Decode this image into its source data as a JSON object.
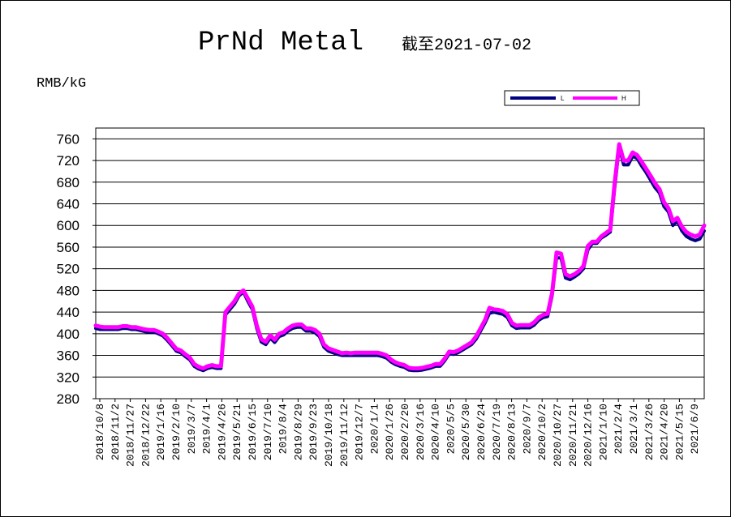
{
  "chart_data": {
    "type": "line",
    "title": "PrNd Metal",
    "subtitle": "截至2021-07-02",
    "ylabel": "RMB/kG",
    "ylim": [
      280,
      780
    ],
    "yticks": [
      280,
      320,
      360,
      400,
      440,
      480,
      520,
      560,
      600,
      640,
      680,
      720,
      760
    ],
    "grid": "horizontal",
    "legend_position": "top-right",
    "colors": {
      "L": "#000080",
      "H": "#ff00ff"
    },
    "x_labels": [
      "2018/10/8",
      "2018/11/2",
      "2018/11/27",
      "2018/12/22",
      "2019/1/16",
      "2019/2/10",
      "2019/3/7",
      "2019/4/1",
      "2019/4/26",
      "2019/5/21",
      "2019/6/15",
      "2019/7/10",
      "2019/8/4",
      "2019/8/29",
      "2019/9/23",
      "2019/10/18",
      "2019/11/12",
      "2019/12/7",
      "2020/1/1",
      "2020/1/26",
      "2020/2/20",
      "2020/3/16",
      "2020/4/10",
      "2020/5/5",
      "2020/5/30",
      "2020/6/24",
      "2020/7/19",
      "2020/8/13",
      "2020/9/7",
      "2020/10/2",
      "2020/10/27",
      "2020/11/21",
      "2020/12/16",
      "2021/1/10",
      "2021/2/4",
      "2021/3/1",
      "2021/3/26",
      "2021/4/20",
      "2021/5/15",
      "2021/6/9"
    ],
    "series": [
      {
        "name": "L",
        "values": [
          410,
          408,
          408,
          408,
          408,
          408,
          410,
          410,
          408,
          408,
          406,
          404,
          403,
          403,
          400,
          396,
          388,
          378,
          368,
          365,
          358,
          352,
          340,
          335,
          332,
          336,
          338,
          336,
          336,
          435,
          445,
          455,
          470,
          477,
          460,
          445,
          410,
          385,
          380,
          392,
          384,
          395,
          398,
          405,
          410,
          412,
          412,
          405,
          405,
          402,
          395,
          375,
          368,
          365,
          362,
          360,
          360,
          360,
          360,
          360,
          360,
          360,
          360,
          360,
          358,
          355,
          348,
          343,
          340,
          338,
          333,
          332,
          332,
          333,
          335,
          337,
          340,
          340,
          350,
          363,
          362,
          365,
          370,
          375,
          380,
          390,
          405,
          420,
          438,
          440,
          438,
          436,
          430,
          415,
          410,
          411,
          411,
          411,
          416,
          425,
          430,
          432,
          470,
          540,
          540,
          503,
          500,
          505,
          511,
          520,
          555,
          567,
          567,
          577,
          582,
          588,
          670,
          745,
          712,
          712,
          728,
          724,
          710,
          698,
          684,
          670,
          660,
          635,
          625,
          600,
          608,
          590,
          580,
          575,
          572,
          575,
          590
        ]
      },
      {
        "name": "H",
        "values": [
          415,
          413,
          412,
          412,
          412,
          412,
          414,
          414,
          412,
          412,
          410,
          408,
          407,
          407,
          404,
          400,
          392,
          382,
          372,
          369,
          362,
          356,
          344,
          339,
          336,
          340,
          342,
          340,
          340,
          440,
          450,
          460,
          474,
          480,
          465,
          450,
          415,
          390,
          385,
          397,
          389,
          400,
          403,
          410,
          415,
          417,
          417,
          410,
          410,
          407,
          400,
          380,
          373,
          370,
          367,
          364,
          365,
          364,
          365,
          365,
          365,
          365,
          365,
          365,
          363,
          360,
          352,
          347,
          344,
          342,
          337,
          336,
          336,
          337,
          339,
          341,
          344,
          344,
          354,
          367,
          366,
          369,
          374,
          379,
          384,
          395,
          410,
          425,
          448,
          445,
          444,
          442,
          436,
          420,
          415,
          416,
          416,
          416,
          421,
          430,
          435,
          437,
          475,
          550,
          548,
          510,
          506,
          510,
          516,
          525,
          562,
          570,
          570,
          580,
          586,
          592,
          680,
          750,
          720,
          720,
          735,
          730,
          718,
          705,
          692,
          678,
          667,
          643,
          632,
          608,
          614,
          598,
          588,
          583,
          580,
          583,
          600
        ]
      }
    ]
  }
}
